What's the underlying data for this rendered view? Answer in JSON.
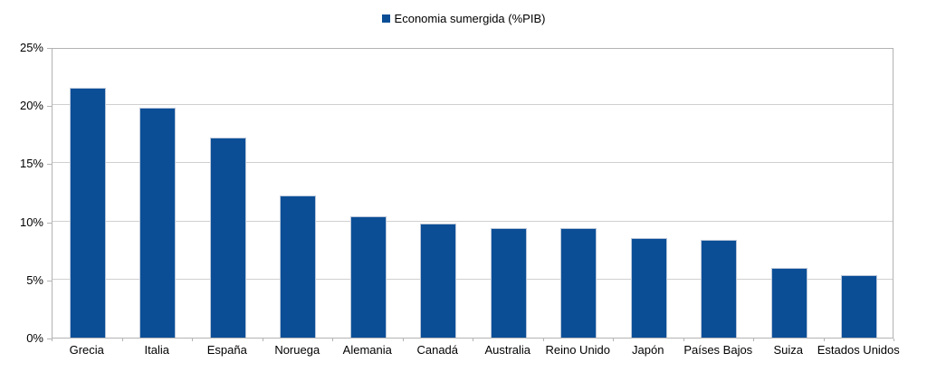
{
  "colors": {
    "bar_fill": "#0b4e96",
    "bar_border": "#b9c6d9",
    "gridline": "#d0d0d0",
    "axis": "#b3b3b3",
    "text": "#000000",
    "background": "#ffffff"
  },
  "chart_data": {
    "type": "bar",
    "title": "",
    "legend_position": "top",
    "grid": true,
    "ylim": [
      0,
      25
    ],
    "yticks": [
      {
        "value": 0,
        "label": "0%"
      },
      {
        "value": 5,
        "label": "5%"
      },
      {
        "value": 10,
        "label": "10%"
      },
      {
        "value": 15,
        "label": "15%"
      },
      {
        "value": 20,
        "label": "20%"
      },
      {
        "value": 25,
        "label": "25%"
      }
    ],
    "categories": [
      "Grecia",
      "Italia",
      "España",
      "Noruega",
      "Alemania",
      "Canadá",
      "Australia",
      "Reino Unido",
      "Japón",
      "Países Bajos",
      "Suiza",
      "Estados Unidos"
    ],
    "series": [
      {
        "name": "Economia sumergida (%PIB)",
        "values": [
          21.5,
          19.8,
          17.2,
          12.2,
          10.4,
          9.8,
          9.4,
          9.4,
          8.6,
          8.4,
          6.0,
          5.4
        ]
      }
    ]
  }
}
